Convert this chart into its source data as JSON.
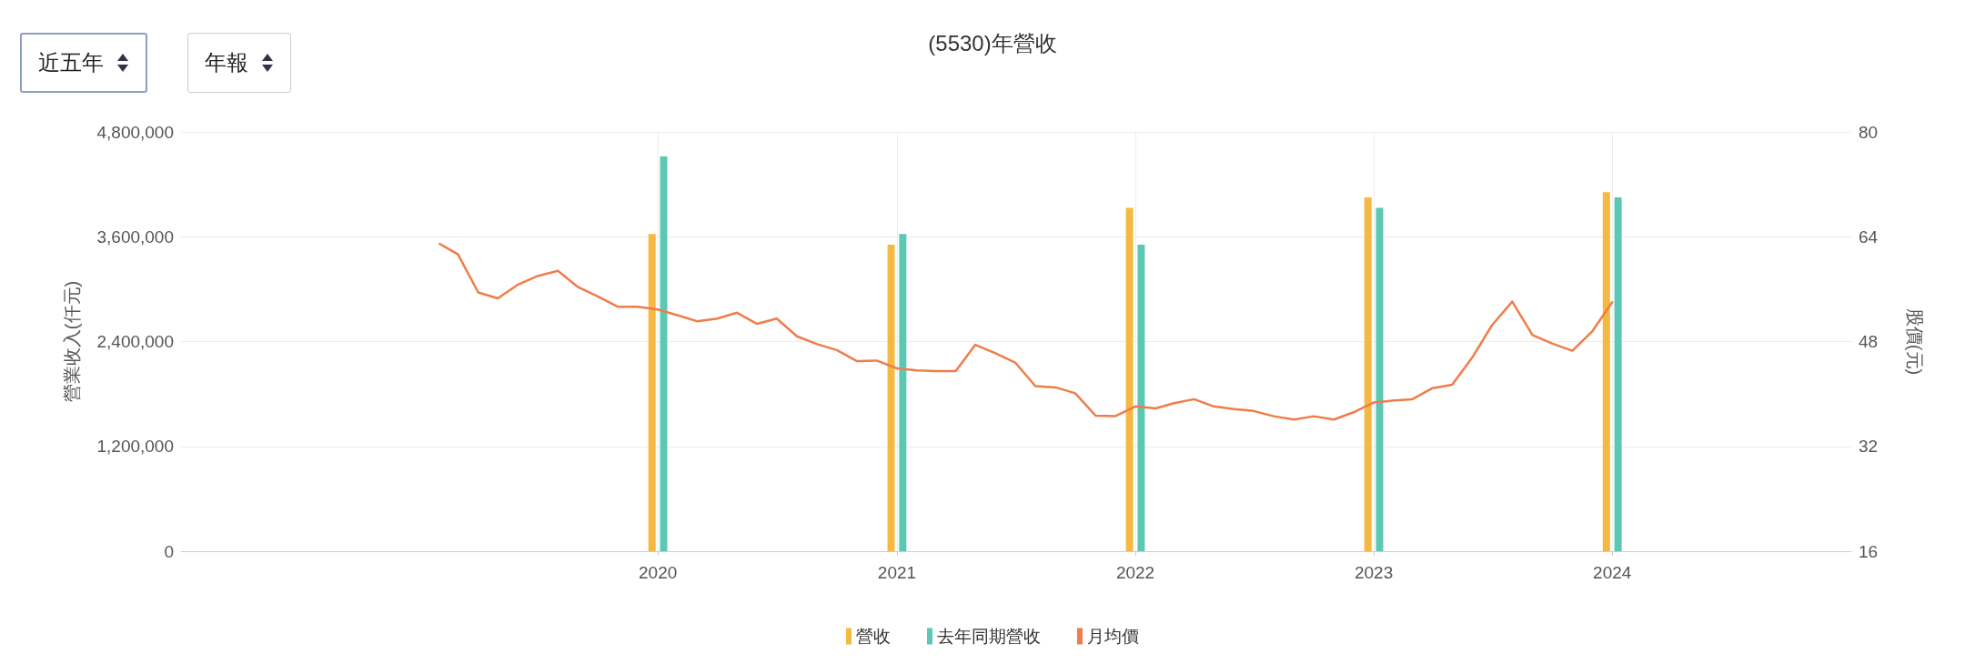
{
  "chart_data": {
    "type": "bar",
    "title": "(5530)年營收",
    "annotations": [
      "近五年",
      "年報"
    ],
    "ylabel": "營業收入(仟元)",
    "y2label": "股價(元)",
    "x": [
      "2020",
      "2021",
      "2022",
      "2023",
      "2024"
    ],
    "series": [
      {
        "name": "營收",
        "color": "#f5b942",
        "values": [
          3630000,
          3510000,
          3930000,
          4050000,
          4110000
        ]
      },
      {
        "name": "去年同期營收",
        "color": "#5bc8b4",
        "values": [
          4520000,
          3630000,
          3510000,
          3930000,
          4050000
        ]
      },
      {
        "name": "月均價",
        "type": "line",
        "axis": "y2",
        "color": "#ef7d4a",
        "marker": "none",
        "line_style": "solid",
        "x": [
          "2019-02",
          "2019-03",
          "2019-04",
          "2019-05",
          "2019-06",
          "2019-07",
          "2019-08",
          "2019-09",
          "2019-10",
          "2019-11",
          "2019-12",
          "2020-01",
          "2020-02",
          "2020-03",
          "2020-04",
          "2020-05",
          "2020-06",
          "2020-07",
          "2020-08",
          "2020-09",
          "2020-10",
          "2020-11",
          "2020-12",
          "2021-01",
          "2021-02",
          "2021-03",
          "2021-04",
          "2021-05",
          "2021-06",
          "2021-07",
          "2021-08",
          "2021-09",
          "2021-10",
          "2021-11",
          "2021-12",
          "2022-01",
          "2022-02",
          "2022-03",
          "2022-04",
          "2022-05",
          "2022-06",
          "2022-07",
          "2022-08",
          "2022-09",
          "2022-10",
          "2022-11",
          "2022-12",
          "2023-01",
          "2023-02",
          "2023-03",
          "2023-04",
          "2023-05",
          "2023-06",
          "2023-07",
          "2023-08",
          "2023-09",
          "2023-10",
          "2023-11",
          "2023-12",
          "2024-01"
        ],
        "values": [
          62.9,
          61.3,
          55.5,
          54.6,
          56.7,
          58.0,
          58.8,
          56.3,
          54.9,
          53.3,
          53.3,
          52.9,
          52.0,
          51.1,
          51.5,
          52.4,
          50.7,
          51.5,
          48.8,
          47.6,
          46.7,
          45.0,
          45.1,
          43.9,
          43.6,
          43.5,
          43.5,
          47.5,
          46.2,
          44.8,
          41.2,
          41.0,
          40.1,
          36.7,
          36.6,
          38.1,
          37.8,
          38.6,
          39.2,
          38.1,
          37.7,
          37.4,
          36.6,
          36.1,
          36.6,
          36.1,
          37.2,
          38.7,
          39.0,
          39.2,
          40.9,
          41.4,
          45.6,
          50.5,
          54.1,
          49.0,
          47.7,
          46.6,
          49.5,
          54.0
        ]
      }
    ],
    "xlim": [
      "2018-01",
      "2025-01"
    ],
    "xticks": [
      "2020",
      "2021",
      "2022",
      "2023",
      "2024"
    ],
    "ylim": [
      0,
      4800000
    ],
    "yticks": [
      {
        "value": 0,
        "label": "0"
      },
      {
        "value": 1200000,
        "label": "1,200,000"
      },
      {
        "value": 2400000,
        "label": "2,400,000"
      },
      {
        "value": 3600000,
        "label": "3,600,000"
      },
      {
        "value": 4800000,
        "label": "4,800,000"
      }
    ],
    "y2lim": [
      16,
      80
    ],
    "y2ticks": [
      16,
      32,
      48,
      64,
      80
    ],
    "grid": true,
    "legend": "bottom"
  }
}
